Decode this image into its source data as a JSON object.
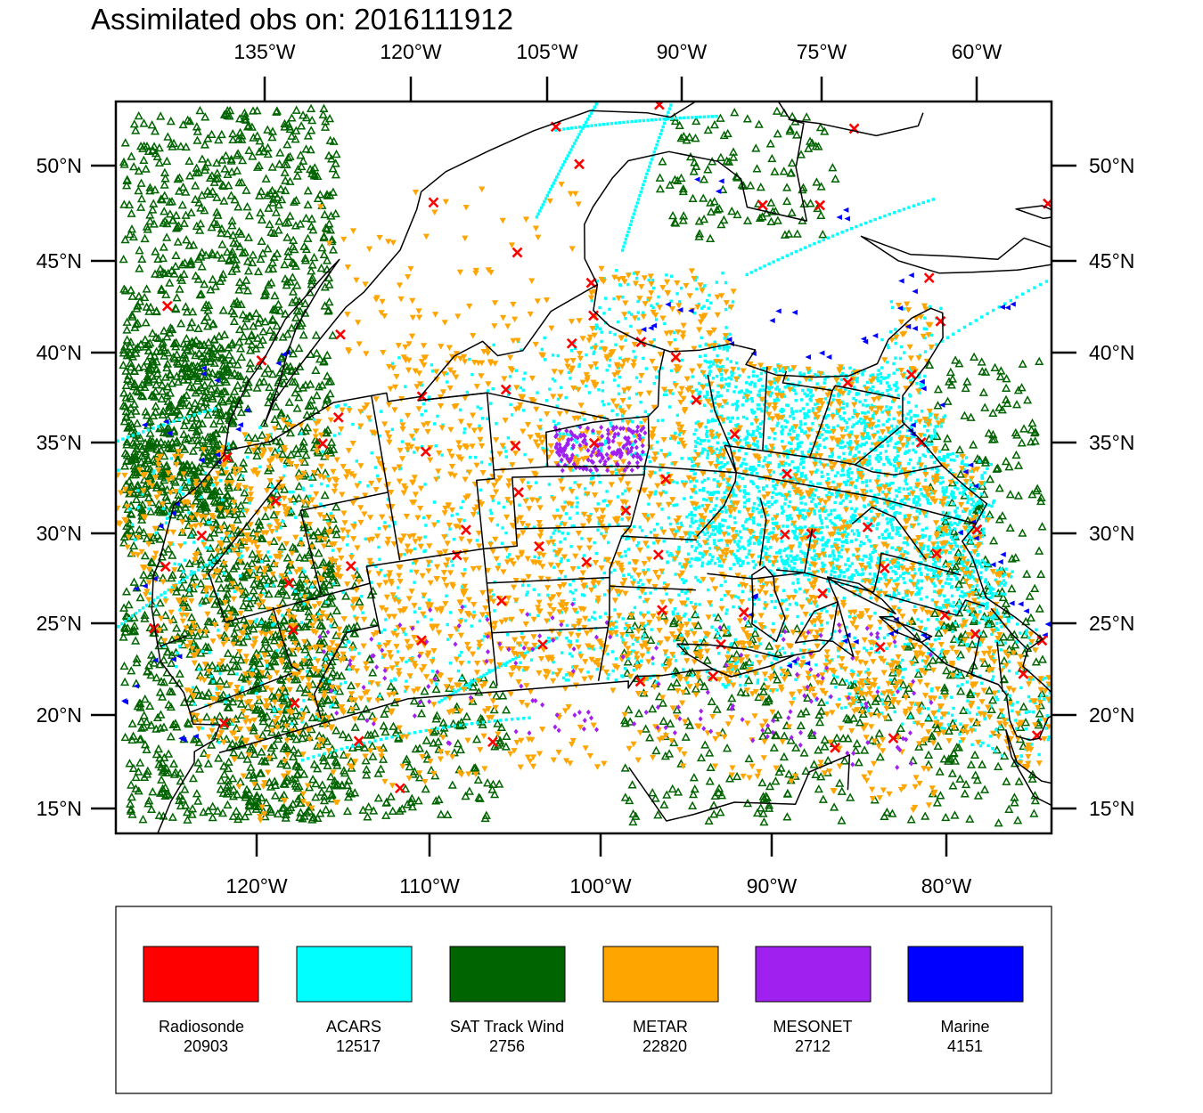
{
  "title": "Assimilated obs on: 2016111912",
  "top_lon_ticks": [
    "135°W",
    "120°W",
    "105°W",
    "90°W",
    "75°W",
    "60°W"
  ],
  "bottom_lon_ticks": [
    "120°W",
    "110°W",
    "100°W",
    "90°W",
    "80°W"
  ],
  "lat_ticks": [
    "50°N",
    "45°N",
    "40°N",
    "35°N",
    "30°N",
    "25°N",
    "20°N",
    "15°N"
  ],
  "map": {
    "lon_range": [
      -128.2,
      -73.5
    ],
    "lat_range": [
      14.0,
      54.0
    ],
    "projection": "lambert-conformal-like"
  },
  "legend": [
    {
      "name": "Radiosonde",
      "count": "20903",
      "color": "#ff0000",
      "marker": "x"
    },
    {
      "name": "ACARS",
      "count": "12517",
      "color": "#00ffff",
      "marker": "dot"
    },
    {
      "name": "SAT Track Wind",
      "count": "2756",
      "color": "#006400",
      "marker": "triangle-up"
    },
    {
      "name": "METAR",
      "count": "22820",
      "color": "#ffa500",
      "marker": "triangle-down"
    },
    {
      "name": "MESONET",
      "count": "2712",
      "color": "#a020f0",
      "marker": "diamond"
    },
    {
      "name": "Marine",
      "count": "4151",
      "color": "#0000ff",
      "marker": "triangle-left"
    }
  ]
}
